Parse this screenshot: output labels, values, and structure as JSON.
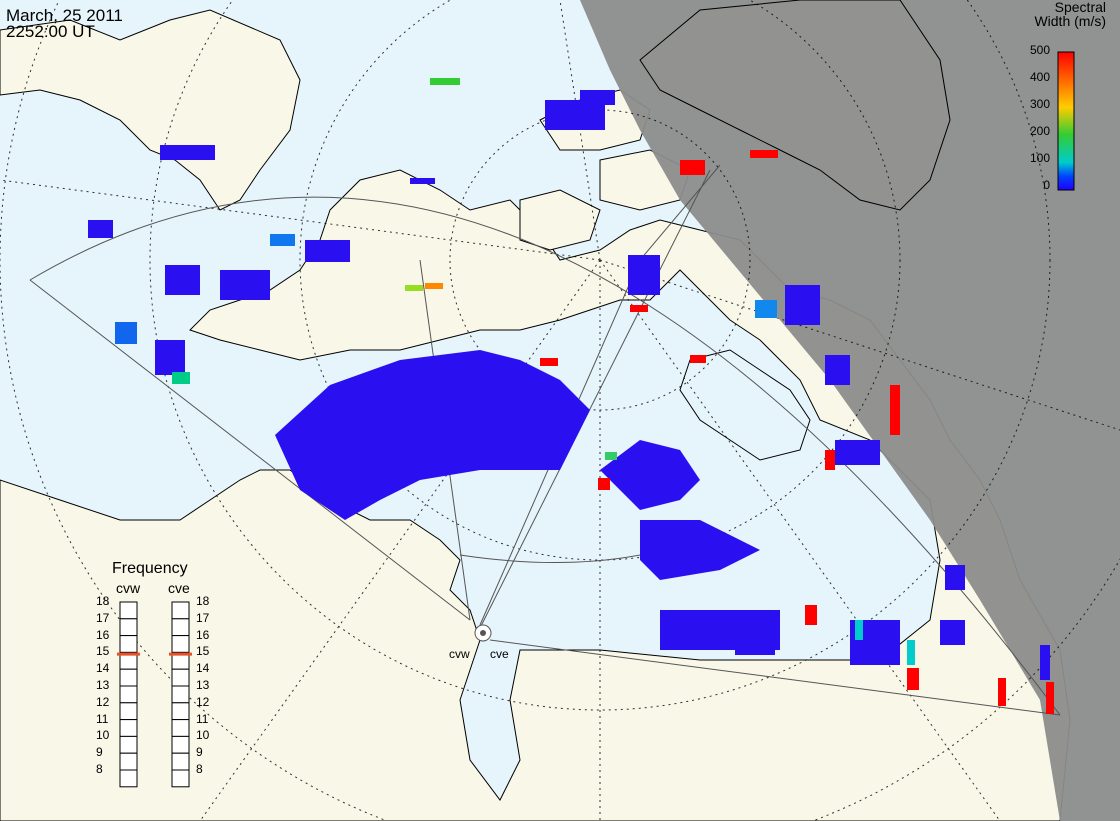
{
  "title": {
    "date": "March, 25 2011",
    "time": "2252:00 UT"
  },
  "colorbar": {
    "title_line1": "Spectral",
    "title_line2": "Width (m/s)",
    "ticks": [
      "500",
      "400",
      "300",
      "200",
      "100",
      "0"
    ],
    "colors": [
      "#ff0000",
      "#ff6600",
      "#ffcc00",
      "#33cc33",
      "#00cccc",
      "#0044ff",
      "#2200ff"
    ]
  },
  "frequency_panel": {
    "title": "Frequency",
    "radars": [
      "cvw",
      "cve"
    ],
    "ticks": [
      "18",
      "17",
      "16",
      "15",
      "14",
      "13",
      "12",
      "11",
      "10",
      "9",
      "8"
    ],
    "cvw_value_mhz": 15.4,
    "cve_value_mhz": 15.4,
    "indicator_color": "#e8502a"
  },
  "map": {
    "radar_labels": [
      "cvw",
      "cve"
    ],
    "ocean_color": "#e6f4fb",
    "land_color": "#f8f7e8",
    "night_color": "#8c8c8c",
    "scatter_color": "#2a10f0"
  }
}
